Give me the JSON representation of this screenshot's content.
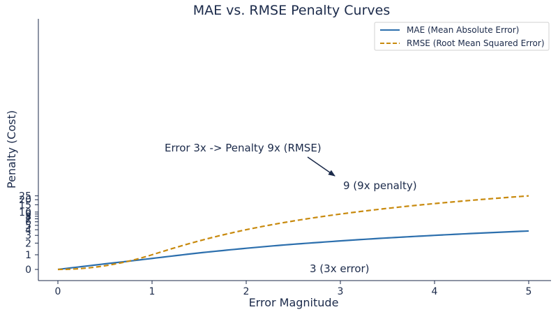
{
  "chart_data": {
    "type": "line",
    "title": "MAE vs. RMSE Penalty Curves",
    "xlabel": "Error Magnitude",
    "ylabel": "Penalty (Cost)",
    "xlim": [
      -0.2,
      5.2
    ],
    "ylim": [
      -1.5,
      27
    ],
    "x_ticks": [
      0,
      1,
      2,
      3,
      4,
      5
    ],
    "y_ticks": [
      0,
      1,
      2,
      3,
      4,
      5,
      6,
      7,
      8,
      9,
      10,
      15,
      20,
      25
    ],
    "grid": false,
    "legend_position": "top-right",
    "x": [
      0,
      0.25,
      0.5,
      0.75,
      1,
      1.25,
      1.5,
      1.75,
      2,
      2.25,
      2.5,
      2.75,
      3,
      3.25,
      3.5,
      3.75,
      4,
      4.25,
      4.5,
      4.75,
      5
    ],
    "series": [
      {
        "name": "MAE (Mean Absolute Error)",
        "style": "solid",
        "color": "#2c6fad",
        "values": [
          0,
          0.19,
          0.38,
          0.56,
          0.75,
          0.94,
          1.13,
          1.31,
          1.5,
          1.69,
          1.88,
          2.06,
          2.25,
          2.44,
          2.63,
          2.81,
          3.0,
          3.19,
          3.38,
          3.56,
          3.75
        ]
      },
      {
        "name": "RMSE (Root Mean Squared Error)",
        "style": "dashed",
        "color": "#c88a0e",
        "values": [
          0,
          0.06,
          0.25,
          0.56,
          1.0,
          1.56,
          2.25,
          3.06,
          4.0,
          5.06,
          6.25,
          7.56,
          9.0,
          10.56,
          12.25,
          14.06,
          16.0,
          18.06,
          20.25,
          22.56,
          25.0
        ]
      }
    ],
    "annotations": [
      {
        "text": "Error 3x -> Penalty 9x (RMSE)",
        "arrow_to_x": 3,
        "arrow_to_y": 9
      },
      {
        "text": "9 (9x penalty)"
      },
      {
        "text": "3 (3x error)"
      }
    ]
  }
}
